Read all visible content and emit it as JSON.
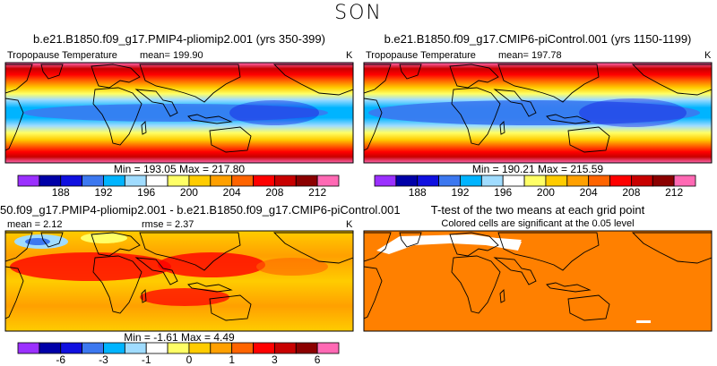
{
  "season": "SON",
  "chart_data": [
    {
      "type": "heatmap",
      "title": "b.e21.B1850.f09_g17.PMIP4-pliomip2.001 (yrs 350-399)",
      "variable": "Tropopause Temperature",
      "mean_label": "mean=",
      "mean": "199.90",
      "units": "K",
      "minmax": {
        "min_label": "Min =",
        "min": "193.05",
        "max_label": "Max =",
        "max": "217.80"
      },
      "colorbar_ticks": [
        "188",
        "192",
        "196",
        "200",
        "204",
        "208",
        "212"
      ],
      "colorbar_colors": [
        "#9b30ff",
        "#0000a8",
        "#1010e0",
        "#3c78f0",
        "#00b4ff",
        "#a0dcff",
        "#ffffff",
        "#ffff66",
        "#ffcc00",
        "#ffa000",
        "#ff6400",
        "#ff0000",
        "#c80000",
        "#8b0000",
        "#ff69b4"
      ]
    },
    {
      "type": "heatmap",
      "title": "b.e21.B1850.f09_g17.CMIP6-piControl.001 (yrs 1150-1199)",
      "variable": "Tropopause Temperature",
      "mean_label": "mean=",
      "mean": "197.78",
      "units": "K",
      "minmax": {
        "min_label": "Min =",
        "min": "190.21",
        "max_label": "Max =",
        "max": "215.59"
      },
      "colorbar_ticks": [
        "188",
        "192",
        "196",
        "200",
        "204",
        "208",
        "212"
      ],
      "colorbar_colors": [
        "#9b30ff",
        "#0000a8",
        "#1010e0",
        "#3c78f0",
        "#00b4ff",
        "#a0dcff",
        "#ffffff",
        "#ffff66",
        "#ffcc00",
        "#ffa000",
        "#ff6400",
        "#ff0000",
        "#c80000",
        "#8b0000",
        "#ff69b4"
      ]
    },
    {
      "type": "heatmap",
      "title": "50.f09_g17.PMIP4-pliomip2.001 - b.e21.B1850.f09_g17.CMIP6-piControl.001",
      "mean_label": "mean =",
      "mean": "2.12",
      "rmse_label": "rmse =",
      "rmse": "2.37",
      "units": "K",
      "minmax": {
        "min_label": "Min =",
        "min": "-1.61",
        "max_label": "Max =",
        "max": "4.49"
      },
      "colorbar_ticks": [
        "-6",
        "-3",
        "-1",
        "0",
        "1",
        "3",
        "6"
      ],
      "colorbar_colors": [
        "#9b30ff",
        "#0000a8",
        "#1010e0",
        "#3c78f0",
        "#00b4ff",
        "#a0dcff",
        "#ffffff",
        "#ffff66",
        "#ffcc00",
        "#ffa000",
        "#ff6400",
        "#ff0000",
        "#c80000",
        "#8b0000",
        "#ff69b4"
      ]
    },
    {
      "type": "heatmap",
      "title": "T-test of the two means at each grid point",
      "subtitle": "Colored cells are significant at the 0.05 level",
      "significant_color": "#ff8000"
    }
  ]
}
